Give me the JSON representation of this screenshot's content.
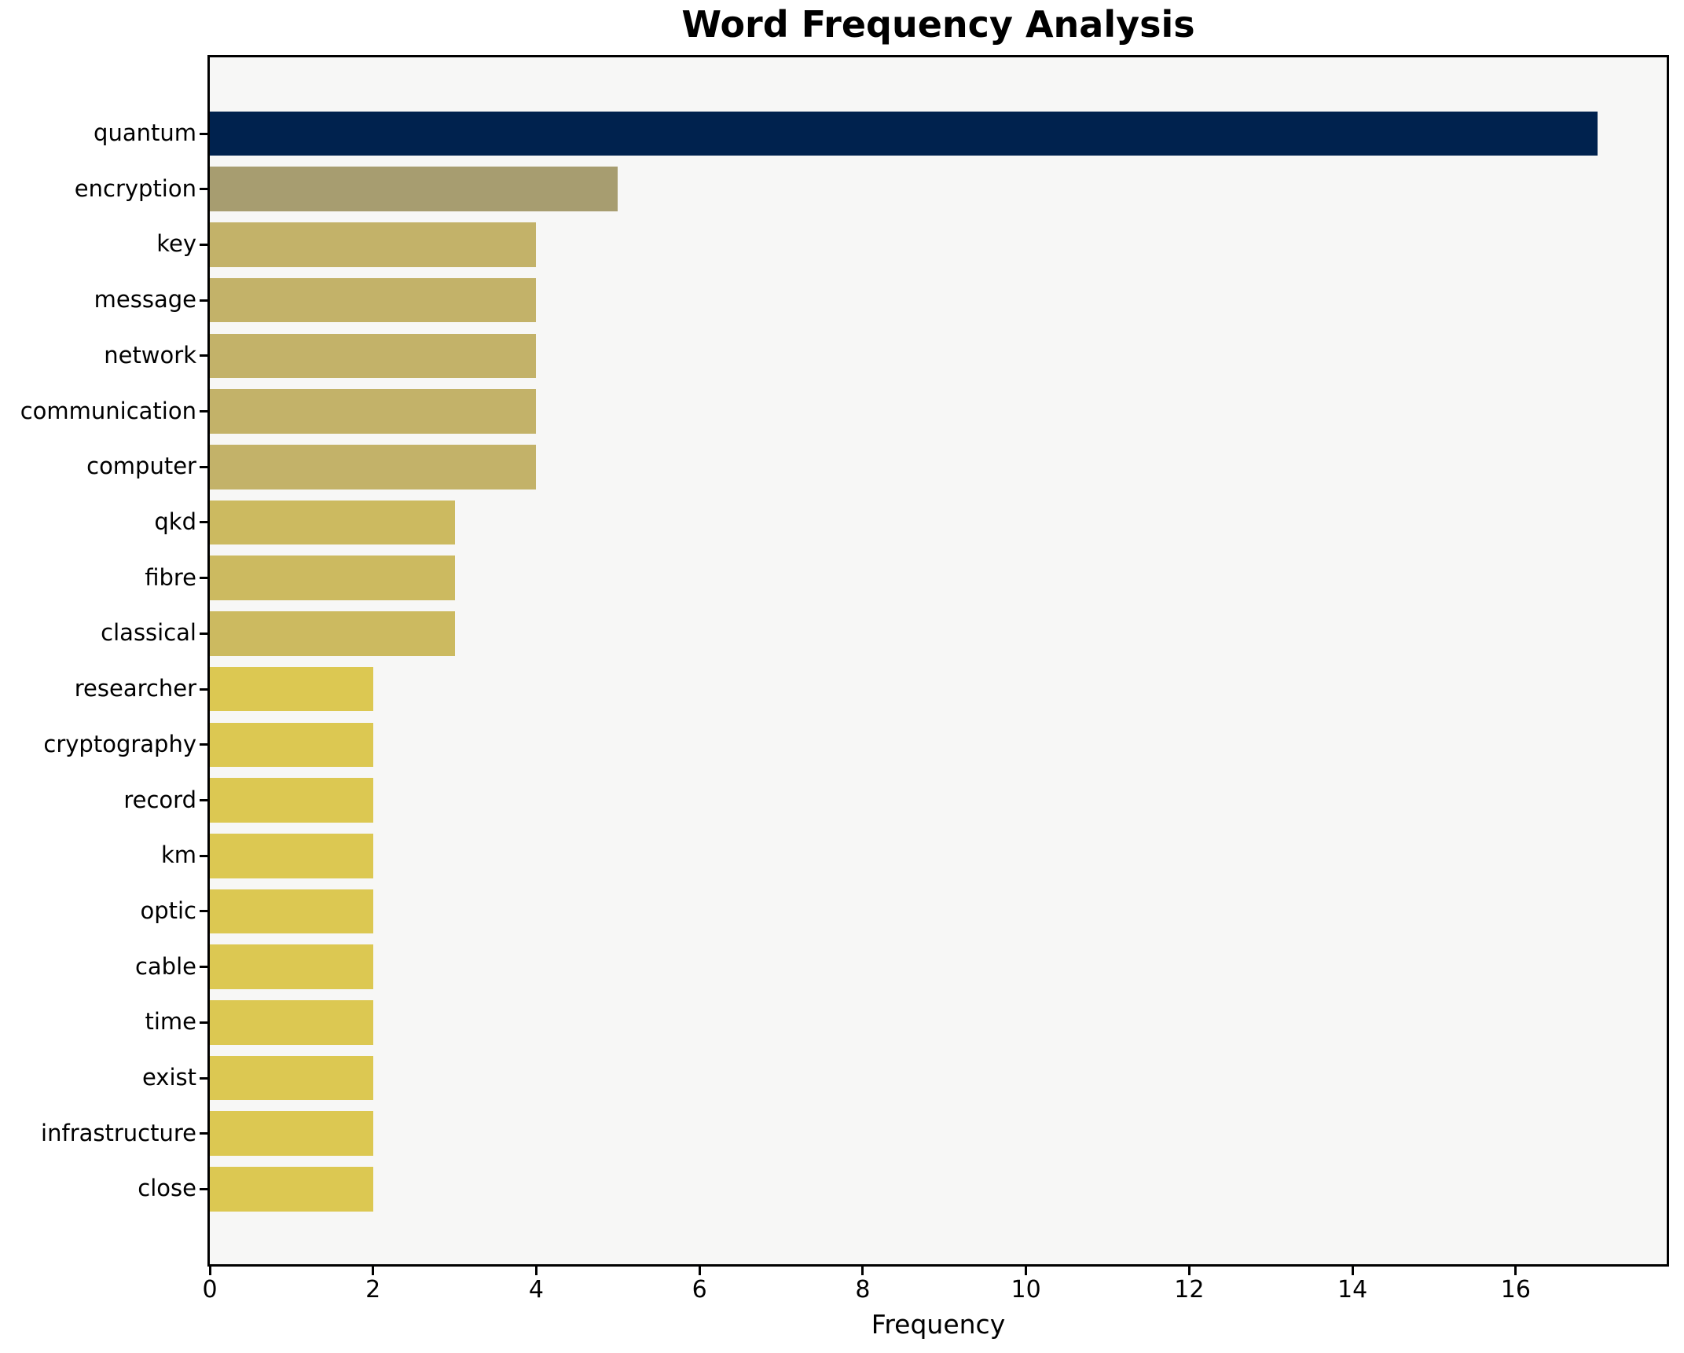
{
  "chart_data": {
    "type": "bar",
    "orientation": "horizontal",
    "title": "Word Frequency Analysis",
    "xlabel": "Frequency",
    "ylabel": "",
    "categories": [
      "quantum",
      "encryption",
      "key",
      "message",
      "network",
      "communication",
      "computer",
      "qkd",
      "fibre",
      "classical",
      "researcher",
      "cryptography",
      "record",
      "km",
      "optic",
      "cable",
      "time",
      "exist",
      "infrastructure",
      "close"
    ],
    "values": [
      17,
      5,
      4,
      4,
      4,
      4,
      4,
      3,
      3,
      3,
      2,
      2,
      2,
      2,
      2,
      2,
      2,
      2,
      2,
      2
    ],
    "bar_colors": [
      "#00224e",
      "#a79d70",
      "#c3b269",
      "#c3b269",
      "#c3b269",
      "#c3b269",
      "#c3b269",
      "#ccba60",
      "#ccba60",
      "#ccba60",
      "#dcc852",
      "#dcc852",
      "#dcc852",
      "#dcc852",
      "#dcc852",
      "#dcc852",
      "#dcc852",
      "#dcc852",
      "#dcc852",
      "#dcc852"
    ],
    "xlim": [
      0,
      17.85
    ],
    "x_ticks": [
      0,
      2,
      4,
      6,
      8,
      10,
      12,
      14,
      16
    ],
    "grid": false,
    "legend_position": "none",
    "plot_background": "#f7f7f6",
    "figure_background": "#ffffff",
    "axis_color": "#000000",
    "title_color": "#000000"
  }
}
